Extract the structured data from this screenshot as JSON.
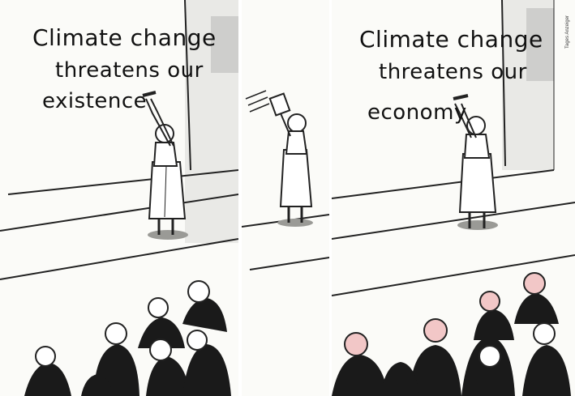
{
  "panels": [
    {
      "board": {
        "line1": "Climate change",
        "line2": "threatens our",
        "line3": "existence"
      }
    },
    {},
    {
      "board": {
        "line1": "Climate change",
        "line2": "threatens our",
        "line3": "economy"
      },
      "credit": "Tages Anzeiger"
    }
  ]
}
